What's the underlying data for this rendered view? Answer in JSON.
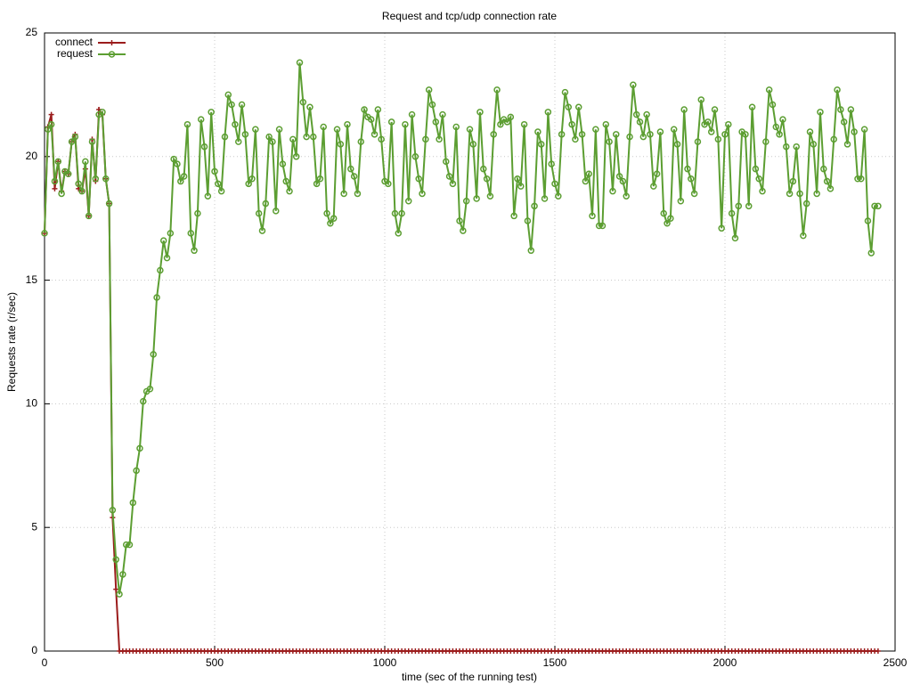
{
  "chart_data": {
    "type": "line",
    "title": "Request and tcp/udp connection rate",
    "x_label": "time (sec of the running test)",
    "y_label": "Requests rate (r/sec)",
    "xlim": [
      0,
      2500
    ],
    "xticks": [
      0,
      500,
      1000,
      1500,
      2000,
      2500
    ],
    "ylim": [
      0,
      25
    ],
    "yticks": [
      0,
      5,
      10,
      15,
      20,
      25
    ],
    "grid": true,
    "legend": "upper left",
    "x": [
      0,
      10,
      20,
      30,
      40,
      50,
      60,
      70,
      80,
      90,
      100,
      110,
      120,
      130,
      140,
      150,
      160,
      170,
      180,
      190,
      200,
      210,
      220,
      230,
      240,
      250,
      260,
      270,
      280,
      290,
      300,
      310,
      320,
      330,
      340,
      350,
      360,
      370,
      380,
      390,
      400,
      410,
      420,
      430,
      440,
      450,
      460,
      470,
      480,
      490,
      500,
      510,
      520,
      530,
      540,
      550,
      560,
      570,
      580,
      590,
      600,
      610,
      620,
      630,
      640,
      650,
      660,
      670,
      680,
      690,
      700,
      710,
      720,
      730,
      740,
      750,
      760,
      770,
      780,
      790,
      800,
      810,
      820,
      830,
      840,
      850,
      860,
      870,
      880,
      890,
      900,
      910,
      920,
      930,
      940,
      950,
      960,
      970,
      980,
      990,
      1000,
      1010,
      1020,
      1030,
      1040,
      1050,
      1060,
      1070,
      1080,
      1090,
      1100,
      1110,
      1120,
      1130,
      1140,
      1150,
      1160,
      1170,
      1180,
      1190,
      1200,
      1210,
      1220,
      1230,
      1240,
      1250,
      1260,
      1270,
      1280,
      1290,
      1300,
      1310,
      1320,
      1330,
      1340,
      1350,
      1360,
      1370,
      1380,
      1390,
      1400,
      1410,
      1420,
      1430,
      1440,
      1450,
      1460,
      1470,
      1480,
      1490,
      1500,
      1510,
      1520,
      1530,
      1540,
      1550,
      1560,
      1570,
      1580,
      1590,
      1600,
      1610,
      1620,
      1630,
      1640,
      1650,
      1660,
      1670,
      1680,
      1690,
      1700,
      1710,
      1720,
      1730,
      1740,
      1750,
      1760,
      1770,
      1780,
      1790,
      1800,
      1810,
      1820,
      1830,
      1840,
      1850,
      1860,
      1870,
      1880,
      1890,
      1900,
      1910,
      1920,
      1930,
      1940,
      1950,
      1960,
      1970,
      1980,
      1990,
      2000,
      2010,
      2020,
      2030,
      2040,
      2050,
      2060,
      2070,
      2080,
      2090,
      2100,
      2110,
      2120,
      2130,
      2140,
      2150,
      2160,
      2170,
      2180,
      2190,
      2200,
      2210,
      2220,
      2230,
      2240,
      2250,
      2260,
      2270,
      2280,
      2290,
      2300,
      2310,
      2320,
      2330,
      2340,
      2350,
      2360,
      2370,
      2380,
      2390,
      2400,
      2410,
      2420,
      2430,
      2440,
      2450
    ],
    "series": [
      {
        "name": "connect",
        "color": "#9b1c1c",
        "marker": "plus",
        "values": [
          16.9,
          21.2,
          21.7,
          18.7,
          19.8,
          18.6,
          19.4,
          19.3,
          20.6,
          20.9,
          18.7,
          18.6,
          19.5,
          17.6,
          20.7,
          19.0,
          21.9,
          21.7,
          19.1,
          18.1,
          5.4,
          2.5,
          0,
          0,
          0,
          0,
          0,
          0,
          0,
          0,
          0,
          0,
          0,
          0,
          0,
          0,
          0,
          0,
          0,
          0,
          0,
          0,
          0,
          0,
          0,
          0,
          0,
          0,
          0,
          0,
          0,
          0,
          0,
          0,
          0,
          0,
          0,
          0,
          0,
          0,
          0,
          0,
          0,
          0,
          0,
          0,
          0,
          0,
          0,
          0,
          0,
          0,
          0,
          0,
          0,
          0,
          0,
          0,
          0,
          0,
          0,
          0,
          0,
          0,
          0,
          0,
          0,
          0,
          0,
          0,
          0,
          0,
          0,
          0,
          0,
          0,
          0,
          0,
          0,
          0,
          0,
          0,
          0,
          0,
          0,
          0,
          0,
          0,
          0,
          0,
          0,
          0,
          0,
          0,
          0,
          0,
          0,
          0,
          0,
          0,
          0,
          0,
          0,
          0,
          0,
          0,
          0,
          0,
          0,
          0,
          0,
          0,
          0,
          0,
          0,
          0,
          0,
          0,
          0,
          0,
          0,
          0,
          0,
          0,
          0,
          0,
          0,
          0,
          0,
          0,
          0,
          0,
          0,
          0,
          0,
          0,
          0,
          0,
          0,
          0,
          0,
          0,
          0,
          0,
          0,
          0,
          0,
          0,
          0,
          0,
          0,
          0,
          0,
          0,
          0,
          0,
          0,
          0,
          0,
          0,
          0,
          0,
          0,
          0,
          0,
          0,
          0,
          0,
          0,
          0,
          0,
          0,
          0,
          0,
          0,
          0,
          0,
          0,
          0,
          0,
          0,
          0,
          0,
          0,
          0,
          0,
          0,
          0,
          0,
          0,
          0,
          0,
          0,
          0,
          0,
          0,
          0,
          0,
          0,
          0,
          0,
          0,
          0,
          0,
          0,
          0,
          0,
          0,
          0,
          0,
          0,
          0,
          0,
          0,
          0,
          0,
          0,
          0,
          0,
          0,
          0,
          0,
          0,
          0,
          0,
          0
        ]
      },
      {
        "name": "request",
        "color": "#5c9e32",
        "marker": "circle",
        "values": [
          16.9,
          21.1,
          21.3,
          19.0,
          19.8,
          18.5,
          19.4,
          19.3,
          20.6,
          20.8,
          18.9,
          18.6,
          19.8,
          17.6,
          20.6,
          19.1,
          21.7,
          21.8,
          19.1,
          18.1,
          5.7,
          3.7,
          2.3,
          3.1,
          4.3,
          4.3,
          6.0,
          7.3,
          8.2,
          10.1,
          10.5,
          10.6,
          12.0,
          14.3,
          15.4,
          16.6,
          15.9,
          16.9,
          19.9,
          19.7,
          19.0,
          19.2,
          21.3,
          16.9,
          16.2,
          17.7,
          21.5,
          20.4,
          18.4,
          21.8,
          19.4,
          18.9,
          18.6,
          20.8,
          22.5,
          22.1,
          21.3,
          20.6,
          22.1,
          20.9,
          18.9,
          19.1,
          21.1,
          17.7,
          17.0,
          18.1,
          20.8,
          20.6,
          17.8,
          21.1,
          19.7,
          19.0,
          18.6,
          20.7,
          20.0,
          23.8,
          22.2,
          20.8,
          22.0,
          20.8,
          18.9,
          19.1,
          21.2,
          17.7,
          17.3,
          17.5,
          21.1,
          20.5,
          18.5,
          21.3,
          19.5,
          19.2,
          18.5,
          20.6,
          21.9,
          21.6,
          21.5,
          20.9,
          21.9,
          20.7,
          19.0,
          18.9,
          21.4,
          17.7,
          16.9,
          17.7,
          21.3,
          18.2,
          21.7,
          20.0,
          19.1,
          18.5,
          20.7,
          22.7,
          22.1,
          21.4,
          20.7,
          21.7,
          19.8,
          19.2,
          18.9,
          21.2,
          17.4,
          17.0,
          18.2,
          21.1,
          20.5,
          18.3,
          21.8,
          19.5,
          19.1,
          18.4,
          20.9,
          22.7,
          21.3,
          21.5,
          21.4,
          21.6,
          17.6,
          19.1,
          18.8,
          21.3,
          17.4,
          16.2,
          18.0,
          21.0,
          20.5,
          18.3,
          21.8,
          19.7,
          18.9,
          18.4,
          20.9,
          22.6,
          22.0,
          21.3,
          20.7,
          22.0,
          20.9,
          19.0,
          19.3,
          17.6,
          21.1,
          17.2,
          17.2,
          21.3,
          20.6,
          18.6,
          20.9,
          19.2,
          19.0,
          18.4,
          20.8,
          22.9,
          21.7,
          21.4,
          20.8,
          21.7,
          20.9,
          18.8,
          19.3,
          21.0,
          17.7,
          17.3,
          17.5,
          21.1,
          20.5,
          18.2,
          21.9,
          19.5,
          19.1,
          18.5,
          20.6,
          22.3,
          21.3,
          21.4,
          21.0,
          21.9,
          20.7,
          17.1,
          20.9,
          21.3,
          17.7,
          16.7,
          18.0,
          21.0,
          20.9,
          18.0,
          22.0,
          19.5,
          19.1,
          18.6,
          20.6,
          22.7,
          22.1,
          21.2,
          20.9,
          21.5,
          20.4,
          18.5,
          19.0,
          20.4,
          18.5,
          16.8,
          18.1,
          21.0,
          20.5,
          18.5,
          21.8,
          19.5,
          19.0,
          18.7,
          20.7,
          22.7,
          21.9,
          21.4,
          20.5,
          21.9,
          21.0,
          19.1,
          19.1,
          21.1,
          17.4,
          16.1,
          18.0,
          18.0
        ]
      }
    ]
  }
}
